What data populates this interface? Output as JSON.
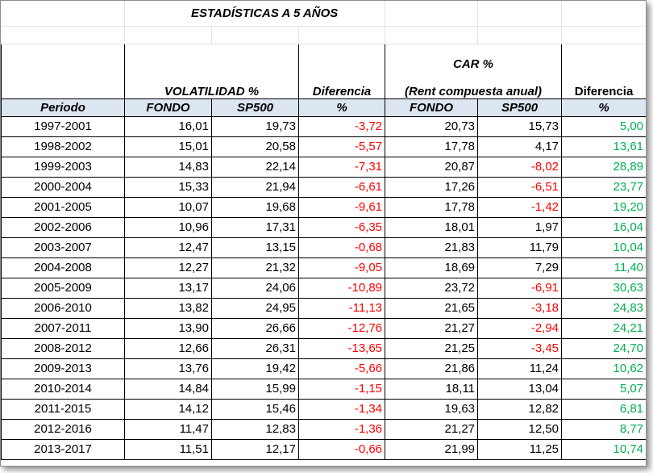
{
  "title": "ESTADÍSTICAS A 5 AÑOS",
  "headers": {
    "volatilidad": "VOLATILIDAD %",
    "diferencia1": "Diferencia",
    "car": "CAR %",
    "rent": "(Rent compuesta anual)",
    "diferencia2": "Diferencia"
  },
  "columns": [
    "Periodo",
    "FONDO",
    "SP500",
    "%",
    "FONDO",
    "SP500",
    "%"
  ],
  "rows": [
    {
      "periodo": "1997-2001",
      "vol_fondo": "16,01",
      "vol_sp": "19,73",
      "vol_dif": "-3,72",
      "car_fondo": "20,73",
      "car_sp": "15,73",
      "car_dif": "5,00"
    },
    {
      "periodo": "1998-2002",
      "vol_fondo": "15,01",
      "vol_sp": "20,58",
      "vol_dif": "-5,57",
      "car_fondo": "17,78",
      "car_sp": "4,17",
      "car_dif": "13,61"
    },
    {
      "periodo": "1999-2003",
      "vol_fondo": "14,83",
      "vol_sp": "22,14",
      "vol_dif": "-7,31",
      "car_fondo": "20,87",
      "car_sp": "-8,02",
      "car_dif": "28,89"
    },
    {
      "periodo": "2000-2004",
      "vol_fondo": "15,33",
      "vol_sp": "21,94",
      "vol_dif": "-6,61",
      "car_fondo": "17,26",
      "car_sp": "-6,51",
      "car_dif": "23,77"
    },
    {
      "periodo": "2001-2005",
      "vol_fondo": "10,07",
      "vol_sp": "19,68",
      "vol_dif": "-9,61",
      "car_fondo": "17,78",
      "car_sp": "-1,42",
      "car_dif": "19,20"
    },
    {
      "periodo": "2002-2006",
      "vol_fondo": "10,96",
      "vol_sp": "17,31",
      "vol_dif": "-6,35",
      "car_fondo": "18,01",
      "car_sp": "1,97",
      "car_dif": "16,04"
    },
    {
      "periodo": "2003-2007",
      "vol_fondo": "12,47",
      "vol_sp": "13,15",
      "vol_dif": "-0,68",
      "car_fondo": "21,83",
      "car_sp": "11,79",
      "car_dif": "10,04"
    },
    {
      "periodo": "2004-2008",
      "vol_fondo": "12,27",
      "vol_sp": "21,32",
      "vol_dif": "-9,05",
      "car_fondo": "18,69",
      "car_sp": "7,29",
      "car_dif": "11,40"
    },
    {
      "periodo": "2005-2009",
      "vol_fondo": "13,17",
      "vol_sp": "24,06",
      "vol_dif": "-10,89",
      "car_fondo": "23,72",
      "car_sp": "-6,91",
      "car_dif": "30,63"
    },
    {
      "periodo": "2006-2010",
      "vol_fondo": "13,82",
      "vol_sp": "24,95",
      "vol_dif": "-11,13",
      "car_fondo": "21,65",
      "car_sp": "-3,18",
      "car_dif": "24,83"
    },
    {
      "periodo": "2007-2011",
      "vol_fondo": "13,90",
      "vol_sp": "26,66",
      "vol_dif": "-12,76",
      "car_fondo": "21,27",
      "car_sp": "-2,94",
      "car_dif": "24,21"
    },
    {
      "periodo": "2008-2012",
      "vol_fondo": "12,66",
      "vol_sp": "26,31",
      "vol_dif": "-13,65",
      "car_fondo": "21,25",
      "car_sp": "-3,45",
      "car_dif": "24,70"
    },
    {
      "periodo": "2009-2013",
      "vol_fondo": "13,76",
      "vol_sp": "19,42",
      "vol_dif": "-5,66",
      "car_fondo": "21,86",
      "car_sp": "11,24",
      "car_dif": "10,62"
    },
    {
      "periodo": "2010-2014",
      "vol_fondo": "14,84",
      "vol_sp": "15,99",
      "vol_dif": "-1,15",
      "car_fondo": "18,11",
      "car_sp": "13,04",
      "car_dif": "5,07"
    },
    {
      "periodo": "2011-2015",
      "vol_fondo": "14,12",
      "vol_sp": "15,46",
      "vol_dif": "-1,34",
      "car_fondo": "19,63",
      "car_sp": "12,82",
      "car_dif": "6,81"
    },
    {
      "periodo": "2012-2016",
      "vol_fondo": "11,47",
      "vol_sp": "12,83",
      "vol_dif": "-1,36",
      "car_fondo": "21,27",
      "car_sp": "12,50",
      "car_dif": "8,77"
    },
    {
      "periodo": "2013-2017",
      "vol_fondo": "11,51",
      "vol_sp": "12,17",
      "vol_dif": "-0,66",
      "car_fondo": "21,99",
      "car_sp": "11,25",
      "car_dif": "10,74"
    }
  ],
  "colors": {
    "negative": "#ff0000",
    "positive": "#00b050",
    "header_fill": "#dce6f1"
  }
}
